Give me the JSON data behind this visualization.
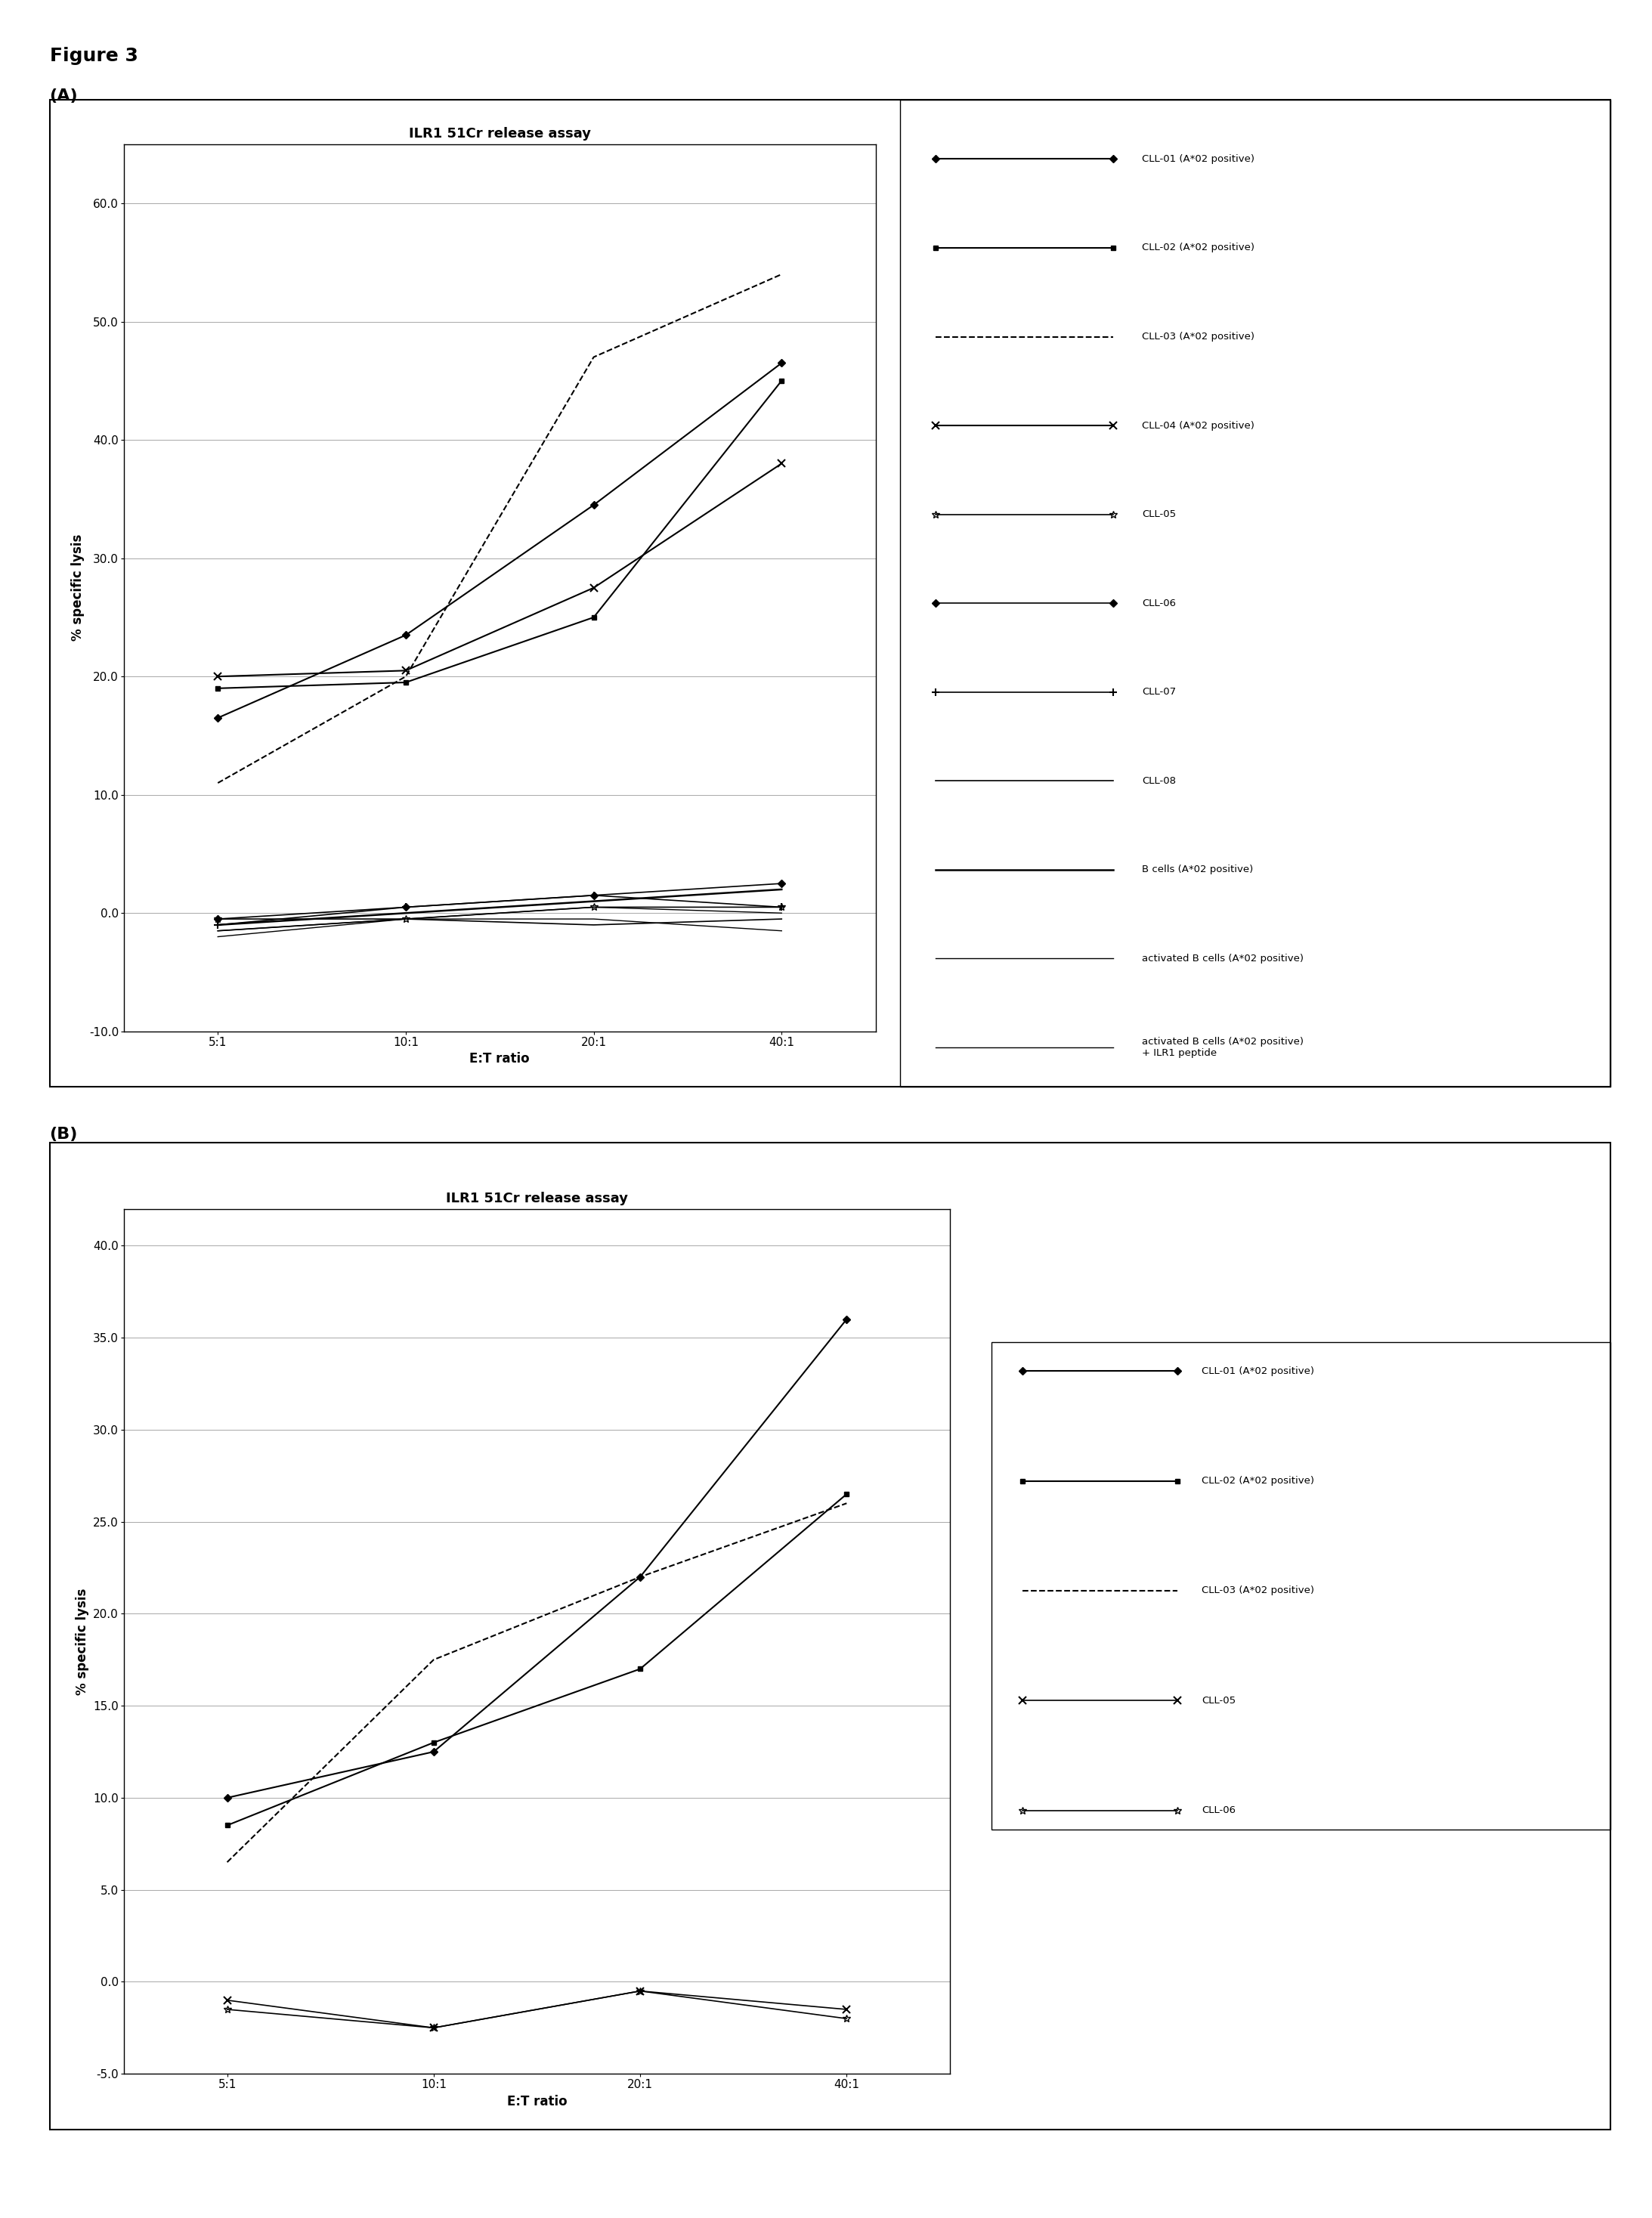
{
  "fig_label": "Figure 3",
  "panel_A": {
    "title": "ILR1 51Cr release assay",
    "xlabel": "E:T ratio",
    "ylabel": "% specific lysis",
    "xticks": [
      "5:1",
      "10:1",
      "20:1",
      "40:1"
    ],
    "xvals": [
      1,
      2,
      3,
      4
    ],
    "ylim": [
      -10.0,
      65.0
    ],
    "ytick_vals": [
      -10.0,
      0.0,
      10.0,
      20.0,
      30.0,
      40.0,
      50.0,
      60.0
    ],
    "series": [
      {
        "label": "CLL-01 (A*02 positive)",
        "y": [
          16.5,
          23.5,
          34.5,
          46.5
        ],
        "marker": "D",
        "linestyle": "-",
        "linewidth": 1.5,
        "markersize": 5,
        "filled": true
      },
      {
        "label": "CLL-02 (A*02 positive)",
        "y": [
          19.0,
          19.5,
          25.0,
          45.0
        ],
        "marker": "s",
        "linestyle": "-",
        "linewidth": 1.5,
        "markersize": 5,
        "filled": true
      },
      {
        "label": "CLL-03 (A*02 positive)",
        "y": [
          11.0,
          20.0,
          47.0,
          54.0
        ],
        "marker": null,
        "linestyle": "--",
        "linewidth": 1.5,
        "markersize": 0,
        "filled": false
      },
      {
        "label": "CLL-04 (A*02 positive)",
        "y": [
          20.0,
          20.5,
          27.5,
          38.0
        ],
        "marker": "x",
        "linestyle": "-",
        "linewidth": 1.5,
        "markersize": 7,
        "filled": false
      },
      {
        "label": "CLL-05",
        "y": [
          -0.5,
          -0.5,
          0.5,
          0.5
        ],
        "marker": "*",
        "linestyle": "-",
        "linewidth": 1.2,
        "markersize": 7,
        "filled": false
      },
      {
        "label": "CLL-06",
        "y": [
          -0.5,
          0.5,
          1.5,
          2.5
        ],
        "marker": "D",
        "linestyle": "-",
        "linewidth": 1.2,
        "markersize": 5,
        "filled": true
      },
      {
        "label": "CLL-07",
        "y": [
          -1.0,
          0.5,
          1.5,
          0.5
        ],
        "marker": "+",
        "linestyle": "-",
        "linewidth": 1.2,
        "markersize": 7,
        "filled": false
      },
      {
        "label": "CLL-08",
        "y": [
          -1.5,
          -0.5,
          -1.0,
          -0.5
        ],
        "marker": null,
        "linestyle": "-",
        "linewidth": 1.2,
        "markersize": 0,
        "filled": false
      },
      {
        "label": "B cells (A*02 positive)",
        "y": [
          -1.0,
          0.0,
          1.0,
          2.0
        ],
        "marker": null,
        "linestyle": "-",
        "linewidth": 1.8,
        "markersize": 0,
        "filled": false
      },
      {
        "label": "activated B cells (A*02 positive)",
        "y": [
          -1.5,
          -0.5,
          0.5,
          0.0
        ],
        "marker": null,
        "linestyle": "-",
        "linewidth": 1.0,
        "markersize": 0,
        "filled": false
      },
      {
        "label": "activated B cells (A*02 positive)\n+ ILR1 peptide",
        "y": [
          -2.0,
          -0.5,
          -0.5,
          -1.5
        ],
        "marker": null,
        "linestyle": "-",
        "linewidth": 1.0,
        "markersize": 0,
        "filled": false
      }
    ]
  },
  "panel_B": {
    "title": "ILR1 51Cr release assay",
    "xlabel": "E:T ratio",
    "ylabel": "% specific lysis",
    "xticks": [
      "5:1",
      "10:1",
      "20:1",
      "40:1"
    ],
    "xvals": [
      1,
      2,
      3,
      4
    ],
    "ylim": [
      -5.0,
      42.0
    ],
    "ytick_vals": [
      -5.0,
      0.0,
      5.0,
      10.0,
      15.0,
      20.0,
      25.0,
      30.0,
      35.0,
      40.0
    ],
    "series": [
      {
        "label": "CLL-01 (A*02 positive)",
        "y": [
          10.0,
          12.5,
          22.0,
          36.0
        ],
        "marker": "D",
        "linestyle": "-",
        "linewidth": 1.5,
        "markersize": 5,
        "filled": true
      },
      {
        "label": "CLL-02 (A*02 positive)",
        "y": [
          8.5,
          13.0,
          17.0,
          26.5
        ],
        "marker": "s",
        "linestyle": "-",
        "linewidth": 1.5,
        "markersize": 5,
        "filled": true
      },
      {
        "label": "CLL-03 (A*02 positive)",
        "y": [
          6.5,
          17.5,
          22.0,
          26.0
        ],
        "marker": null,
        "linestyle": "--",
        "linewidth": 1.5,
        "markersize": 0,
        "filled": false
      },
      {
        "label": "CLL-05",
        "y": [
          -1.0,
          -2.5,
          -0.5,
          -1.5
        ],
        "marker": "x",
        "linestyle": "-",
        "linewidth": 1.2,
        "markersize": 7,
        "filled": false
      },
      {
        "label": "CLL-06",
        "y": [
          -1.5,
          -2.5,
          -0.5,
          -2.0
        ],
        "marker": "*",
        "linestyle": "-",
        "linewidth": 1.2,
        "markersize": 7,
        "filled": false
      }
    ]
  }
}
